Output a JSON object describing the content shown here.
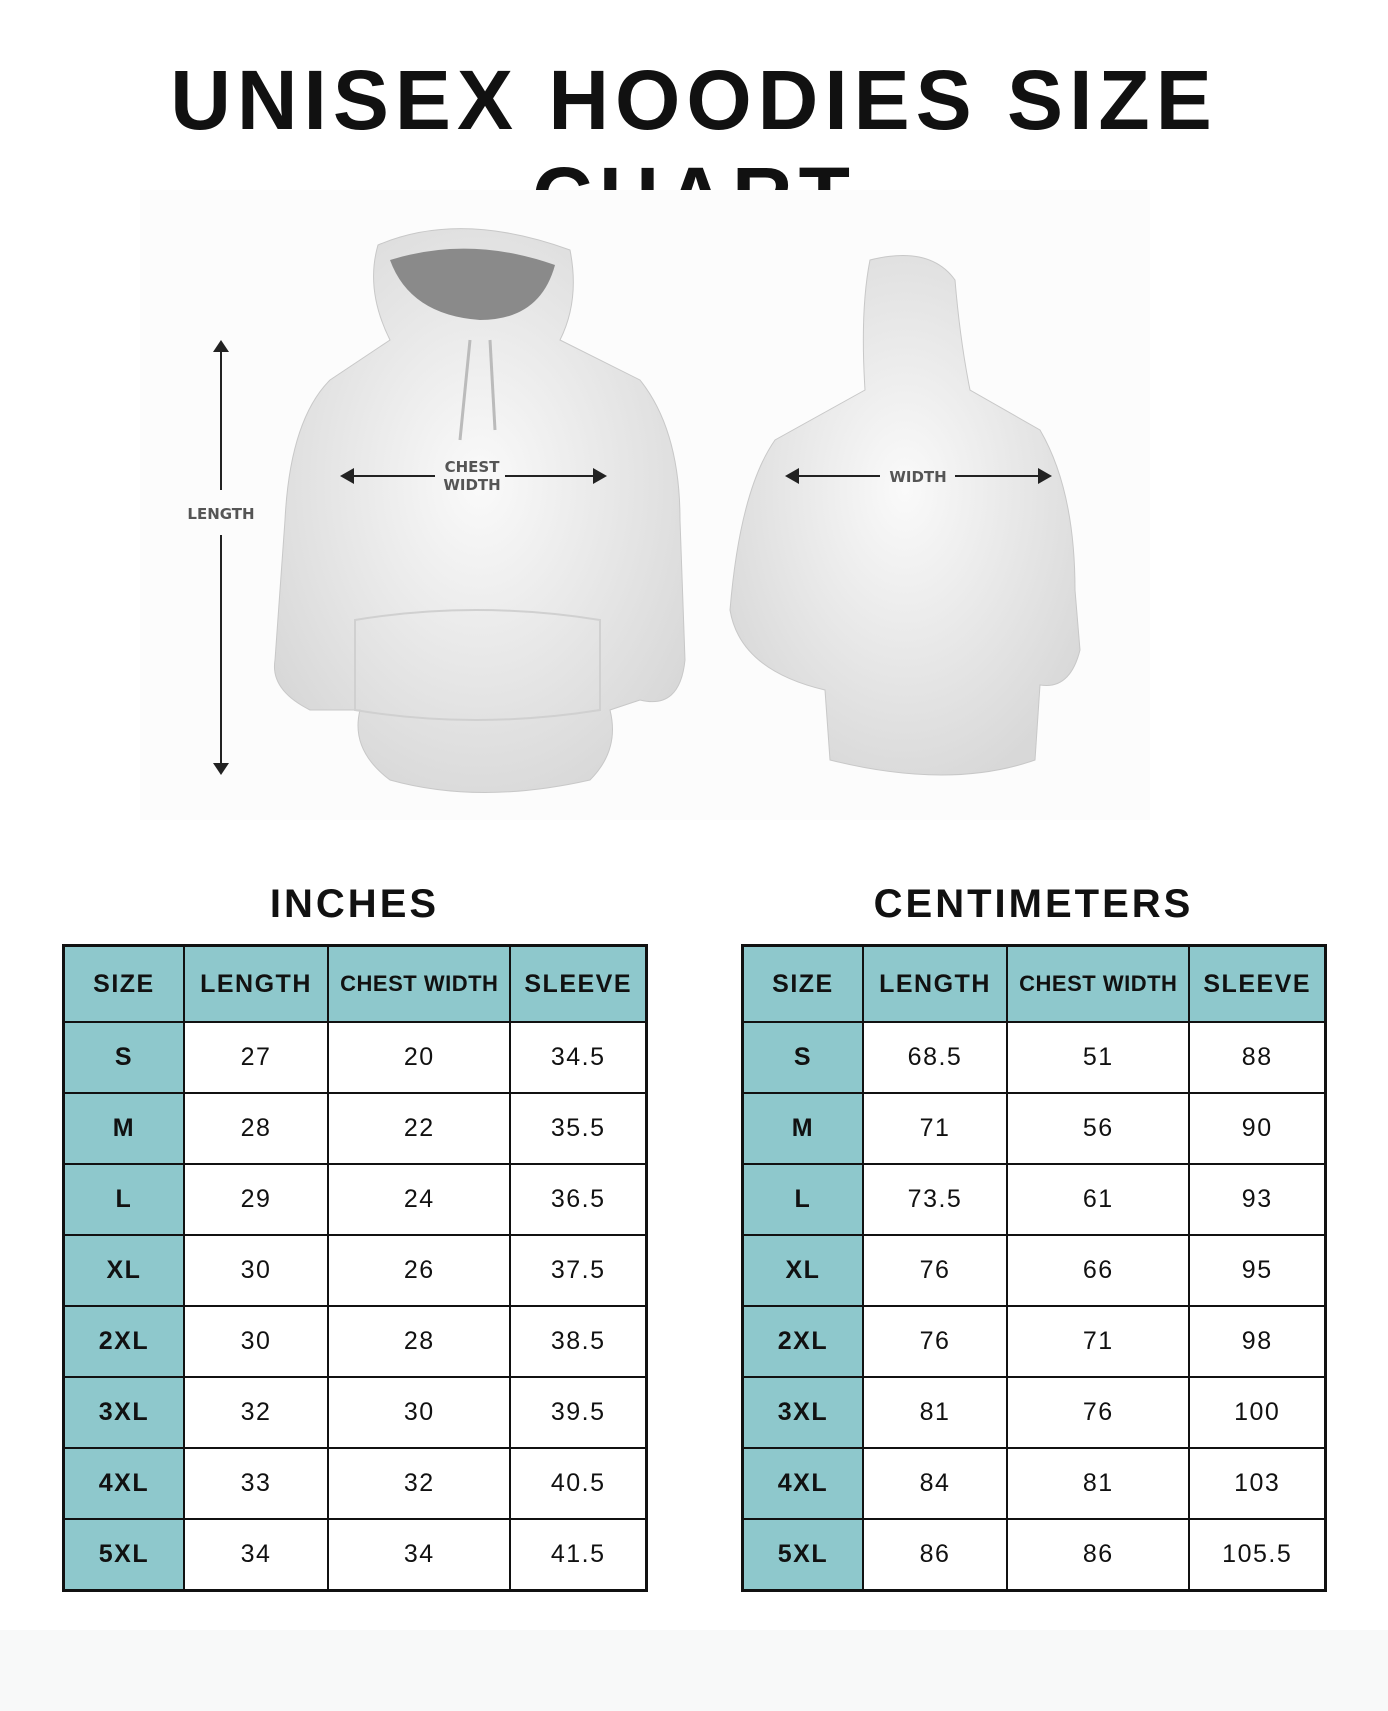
{
  "title": "UNISEX HOODIES SIZE CHART",
  "illustration": {
    "front_labels": {
      "length": "LENGTH",
      "chest_1": "CHEST",
      "chest_2": "WIDTH"
    },
    "back_labels": {
      "width": "WIDTH"
    }
  },
  "tables": [
    {
      "unit": "INCHES",
      "headers": [
        "SIZE",
        "LENGTH",
        "CHEST WIDTH",
        "SLEEVE"
      ],
      "rows": [
        [
          "S",
          "27",
          "20",
          "34.5"
        ],
        [
          "M",
          "28",
          "22",
          "35.5"
        ],
        [
          "L",
          "29",
          "24",
          "36.5"
        ],
        [
          "XL",
          "30",
          "26",
          "37.5"
        ],
        [
          "2XL",
          "30",
          "28",
          "38.5"
        ],
        [
          "3XL",
          "32",
          "30",
          "39.5"
        ],
        [
          "4XL",
          "33",
          "32",
          "40.5"
        ],
        [
          "5XL",
          "34",
          "34",
          "41.5"
        ]
      ]
    },
    {
      "unit": "CENTIMETERS",
      "headers": [
        "SIZE",
        "LENGTH",
        "CHEST WIDTH",
        "SLEEVE"
      ],
      "rows": [
        [
          "S",
          "68.5",
          "51",
          "88"
        ],
        [
          "M",
          "71",
          "56",
          "90"
        ],
        [
          "L",
          "73.5",
          "61",
          "93"
        ],
        [
          "XL",
          "76",
          "66",
          "95"
        ],
        [
          "2XL",
          "76",
          "71",
          "98"
        ],
        [
          "3XL",
          "81",
          "76",
          "100"
        ],
        [
          "4XL",
          "84",
          "81",
          "103"
        ],
        [
          "5XL",
          "86",
          "86",
          "105.5"
        ]
      ]
    }
  ],
  "colors": {
    "header_bg": "#8ec8cc",
    "border": "#111111"
  }
}
